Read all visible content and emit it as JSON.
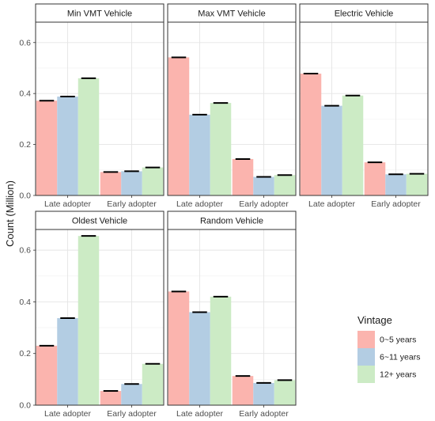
{
  "chart_data": {
    "type": "bar",
    "ylabel": "Count (Million)",
    "ylim": [
      0,
      0.68
    ],
    "yticks": [
      0.0,
      0.2,
      0.4,
      0.6
    ],
    "ytick_labels": [
      "0.0",
      "0.2",
      "0.4",
      "0.6"
    ],
    "categories": [
      "Late adopter",
      "Early adopter"
    ],
    "legend": {
      "title": "Vintage",
      "placement": "right",
      "entries": [
        {
          "label": "0~5 years",
          "color": "#FBB4AE"
        },
        {
          "label": "6~11 years",
          "color": "#B3CDE3"
        },
        {
          "label": "12+ years",
          "color": "#CCEBC5"
        }
      ]
    },
    "grid": true,
    "facets": [
      {
        "title": "Min VMT Vehicle",
        "series": [
          {
            "name": "0~5 years",
            "values": [
              0.372,
              0.092
            ]
          },
          {
            "name": "6~11 years",
            "values": [
              0.388,
              0.095
            ]
          },
          {
            "name": "12+ years",
            "values": [
              0.46,
              0.11
            ]
          }
        ]
      },
      {
        "title": "Max VMT Vehicle",
        "series": [
          {
            "name": "0~5 years",
            "values": [
              0.542,
              0.143
            ]
          },
          {
            "name": "6~11 years",
            "values": [
              0.317,
              0.073
            ]
          },
          {
            "name": "12+ years",
            "values": [
              0.363,
              0.08
            ]
          }
        ]
      },
      {
        "title": "Electric Vehicle",
        "series": [
          {
            "name": "0~5 years",
            "values": [
              0.478,
              0.13
            ]
          },
          {
            "name": "6~11 years",
            "values": [
              0.352,
              0.083
            ]
          },
          {
            "name": "12+ years",
            "values": [
              0.392,
              0.085
            ]
          }
        ]
      },
      {
        "title": "Oldest Vehicle",
        "series": [
          {
            "name": "0~5 years",
            "values": [
              0.23,
              0.055
            ]
          },
          {
            "name": "6~11 years",
            "values": [
              0.337,
              0.082
            ]
          },
          {
            "name": "12+ years",
            "values": [
              0.655,
              0.16
            ]
          }
        ]
      },
      {
        "title": "Random Vehicle",
        "series": [
          {
            "name": "0~5 years",
            "values": [
              0.44,
              0.113
            ]
          },
          {
            "name": "6~11 years",
            "values": [
              0.36,
              0.086
            ]
          },
          {
            "name": "12+ years",
            "values": [
              0.42,
              0.097
            ]
          }
        ]
      }
    ]
  }
}
